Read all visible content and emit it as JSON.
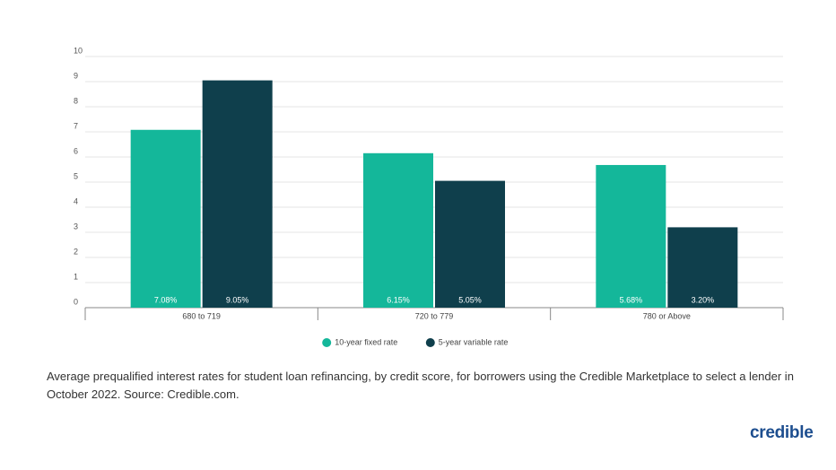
{
  "chart_data": {
    "type": "bar",
    "categories": [
      "680 to 719",
      "720 to 779",
      "780 or Above"
    ],
    "series": [
      {
        "name": "10-year fixed rate",
        "color": "#14b79a",
        "values": [
          7.08,
          6.15,
          5.68
        ],
        "value_labels": [
          "7.08%",
          "6.15%",
          "5.68%"
        ]
      },
      {
        "name": "5-year variable rate",
        "color": "#0f3f4c",
        "values": [
          9.05,
          5.05,
          3.2
        ],
        "value_labels": [
          "9.05%",
          "5.05%",
          "3.20%"
        ]
      }
    ],
    "ylim": [
      0,
      10
    ],
    "yticks": [
      0,
      1,
      2,
      3,
      4,
      5,
      6,
      7,
      8,
      9,
      10
    ],
    "grid": true,
    "legend": "bottom",
    "caption": "Average prequalified interest rates for student loan refinancing, by credit score, for borrowers using the Credible Marketplace to select a lender in October 2022. Source: Credible.com."
  },
  "logo": "credible"
}
